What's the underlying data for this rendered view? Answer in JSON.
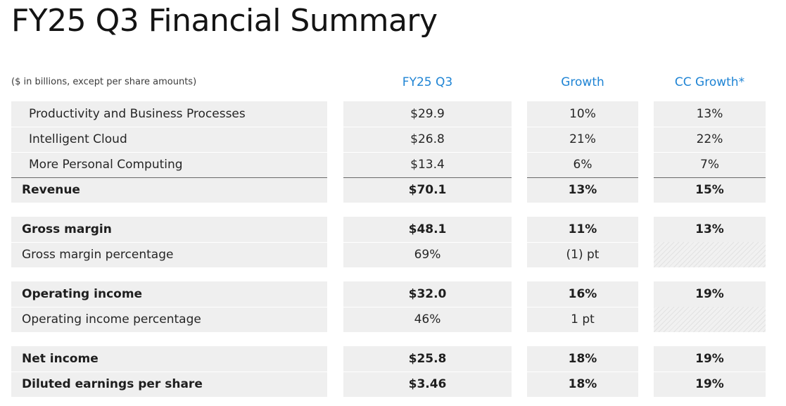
{
  "title": "FY25 Q3 Financial Summary",
  "units_note": "($ in billions, except per share amounts)",
  "columns": {
    "period": "FY25 Q3",
    "growth": "Growth",
    "cc_growth": "CC Growth*"
  },
  "colors": {
    "header_accent": "#1f84d4",
    "row_background": "#efefef"
  },
  "groups": [
    {
      "rows": [
        {
          "label": "Productivity and Business Processes",
          "value": "$29.9",
          "growth": "10%",
          "cc_growth": "13%",
          "bold": false,
          "indent": true
        },
        {
          "label": "Intelligent Cloud",
          "value": "$26.8",
          "growth": "21%",
          "cc_growth": "22%",
          "bold": false,
          "indent": true
        },
        {
          "label": "More Personal Computing",
          "value": "$13.4",
          "growth": "6%",
          "cc_growth": "7%",
          "bold": false,
          "indent": true
        },
        {
          "label": "Revenue",
          "value": "$70.1",
          "growth": "13%",
          "cc_growth": "15%",
          "bold": true,
          "indent": false,
          "total": true
        }
      ]
    },
    {
      "rows": [
        {
          "label": "Gross margin",
          "value": "$48.1",
          "growth": "11%",
          "cc_growth": "13%",
          "bold": true,
          "indent": false
        },
        {
          "label": "Gross margin percentage",
          "value": "69%",
          "growth": "(1) pt",
          "cc_growth": null,
          "bold": false,
          "indent": false
        }
      ]
    },
    {
      "rows": [
        {
          "label": "Operating income",
          "value": "$32.0",
          "growth": "16%",
          "cc_growth": "19%",
          "bold": true,
          "indent": false
        },
        {
          "label": "Operating income percentage",
          "value": "46%",
          "growth": "1 pt",
          "cc_growth": null,
          "bold": false,
          "indent": false
        }
      ]
    },
    {
      "rows": [
        {
          "label": "Net income",
          "value": "$25.8",
          "growth": "18%",
          "cc_growth": "19%",
          "bold": true,
          "indent": false
        },
        {
          "label": "Diluted earnings per share",
          "value": "$3.46",
          "growth": "18%",
          "cc_growth": "19%",
          "bold": true,
          "indent": false
        }
      ]
    }
  ]
}
